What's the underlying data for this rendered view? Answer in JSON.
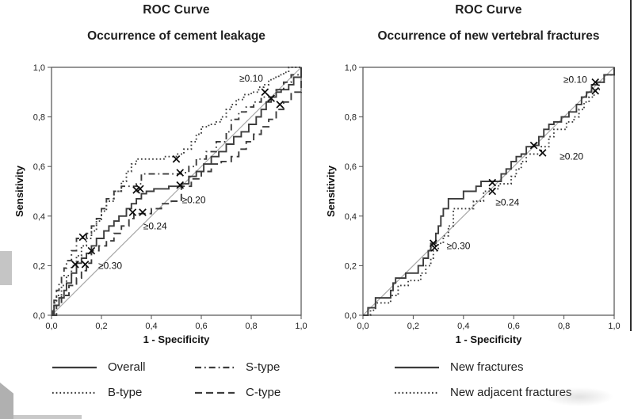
{
  "colors": {
    "curve": "#3c3c3c",
    "reference": "#a8a8a8",
    "frame": "#4f4f4f",
    "marker": "#0a0a0a",
    "text": "#1a1a1a",
    "artifact_gray": "#c5c5c5",
    "artifact_dark_gray": "#b0b0b0",
    "edge_line": "#2e2e2e"
  },
  "chart_data": [
    {
      "type": "line",
      "variant": "ROC",
      "title": "ROC Curve",
      "subtitle": "Occurrence of cement leakage",
      "xlabel": "1 - Specificity",
      "ylabel": "Sensitivity",
      "xlim": [
        0,
        1
      ],
      "ylim": [
        0,
        1
      ],
      "grid": false,
      "x_ticks": [
        "0,0",
        "0,2",
        "0,4",
        "0,6",
        "0,8",
        "1,0"
      ],
      "y_ticks": [
        "0,0",
        "0,2",
        "0,4",
        "0,6",
        "0,8",
        "1,0"
      ],
      "reference_line": {
        "from": [
          0,
          0
        ],
        "to": [
          1,
          1
        ]
      },
      "series": [
        {
          "name": "Overall",
          "line_style": "solid",
          "x": [
            0,
            0.01,
            0.03,
            0.05,
            0.06,
            0.08,
            0.1,
            0.12,
            0.14,
            0.16,
            0.18,
            0.21,
            0.23,
            0.25,
            0.27,
            0.3,
            0.32,
            0.34,
            0.36,
            0.38,
            0.41,
            0.44,
            0.47,
            0.5,
            0.52,
            0.55,
            0.58,
            0.61,
            0.64,
            0.67,
            0.7,
            0.73,
            0.76,
            0.79,
            0.82,
            0.84,
            0.86,
            0.88,
            0.9,
            0.92,
            0.95,
            0.97,
            1
          ],
          "y": [
            0,
            0.04,
            0.07,
            0.1,
            0.13,
            0.17,
            0.21,
            0.23,
            0.25,
            0.28,
            0.31,
            0.34,
            0.36,
            0.38,
            0.4,
            0.43,
            0.45,
            0.47,
            0.49,
            0.5,
            0.51,
            0.51,
            0.52,
            0.52,
            0.53,
            0.56,
            0.58,
            0.61,
            0.64,
            0.66,
            0.69,
            0.72,
            0.74,
            0.77,
            0.8,
            0.83,
            0.86,
            0.88,
            0.9,
            0.91,
            0.93,
            0.96,
            1
          ]
        },
        {
          "name": "B-type",
          "line_style": "dotted",
          "x": [
            0,
            0.01,
            0.02,
            0.04,
            0.06,
            0.08,
            0.1,
            0.12,
            0.14,
            0.16,
            0.18,
            0.2,
            0.22,
            0.25,
            0.28,
            0.3,
            0.32,
            0.34,
            0.4,
            0.45,
            0.5,
            0.53,
            0.56,
            0.58,
            0.6,
            0.63,
            0.66,
            0.68,
            0.7,
            0.72,
            0.74,
            0.77,
            0.8,
            0.83,
            0.85,
            0.87,
            0.89,
            0.91,
            0.93,
            0.95,
            1
          ],
          "y": [
            0,
            0.05,
            0.08,
            0.12,
            0.16,
            0.2,
            0.24,
            0.28,
            0.31,
            0.34,
            0.38,
            0.42,
            0.46,
            0.5,
            0.54,
            0.58,
            0.61,
            0.63,
            0.63,
            0.64,
            0.65,
            0.67,
            0.7,
            0.73,
            0.76,
            0.77,
            0.78,
            0.8,
            0.83,
            0.85,
            0.87,
            0.89,
            0.9,
            0.92,
            0.93,
            0.95,
            0.96,
            0.97,
            0.98,
            1,
            1
          ]
        },
        {
          "name": "S-type",
          "line_style": "dash-dot",
          "x": [
            0,
            0.005,
            0.01,
            0.02,
            0.03,
            0.04,
            0.05,
            0.06,
            0.08,
            0.1,
            0.12,
            0.14,
            0.16,
            0.18,
            0.2,
            0.22,
            0.25,
            0.28,
            0.31,
            0.34,
            0.36,
            0.4,
            0.44,
            0.48,
            0.52,
            0.55,
            0.58,
            0.62,
            0.66,
            0.7,
            0.72,
            0.75,
            0.78,
            0.81,
            0.84,
            0.87,
            0.9,
            0.93,
            0.96,
            1
          ],
          "y": [
            0,
            0.03,
            0.06,
            0.1,
            0.13,
            0.16,
            0.19,
            0.22,
            0.26,
            0.31,
            0.31,
            0.33,
            0.36,
            0.39,
            0.43,
            0.47,
            0.5,
            0.52,
            0.52,
            0.53,
            0.57,
            0.57,
            0.57,
            0.57,
            0.575,
            0.6,
            0.63,
            0.66,
            0.7,
            0.74,
            0.79,
            0.82,
            0.84,
            0.86,
            0.88,
            0.88,
            0.91,
            0.94,
            0.97,
            1
          ]
        },
        {
          "name": "C-type",
          "line_style": "dashed",
          "x": [
            0,
            0.02,
            0.04,
            0.07,
            0.1,
            0.12,
            0.14,
            0.16,
            0.19,
            0.22,
            0.25,
            0.28,
            0.31,
            0.33,
            0.36,
            0.4,
            0.44,
            0.48,
            0.52,
            0.56,
            0.6,
            0.64,
            0.68,
            0.72,
            0.75,
            0.78,
            0.81,
            0.84,
            0.87,
            0.9,
            0.93,
            0.96,
            1
          ],
          "y": [
            0,
            0.04,
            0.08,
            0.12,
            0.15,
            0.18,
            0.21,
            0.26,
            0.28,
            0.3,
            0.33,
            0.36,
            0.39,
            0.41,
            0.41,
            0.43,
            0.45,
            0.46,
            0.52,
            0.55,
            0.58,
            0.61,
            0.62,
            0.64,
            0.67,
            0.7,
            0.73,
            0.76,
            0.79,
            0.83,
            0.86,
            0.9,
            1
          ]
        }
      ],
      "cutoffs": [
        {
          "label": "≥0.10",
          "label_pos": [
            0.8,
            0.955
          ],
          "markers": [
            [
              0.855,
              0.9
            ],
            [
              0.88,
              0.875
            ],
            [
              0.915,
              0.85
            ]
          ]
        },
        {
          "label": "≥0.20",
          "label_pos": [
            0.57,
            0.465
          ],
          "markers": [
            [
              0.5,
              0.63
            ],
            [
              0.515,
              0.575
            ],
            [
              0.515,
              0.525
            ]
          ]
        },
        {
          "label": "≥0.24",
          "label_pos": [
            0.415,
            0.36
          ],
          "markers": [
            [
              0.325,
              0.415
            ],
            [
              0.365,
              0.415
            ],
            [
              0.34,
              0.505
            ],
            [
              0.355,
              0.51
            ]
          ]
        },
        {
          "label": "≥0.30",
          "label_pos": [
            0.235,
            0.2
          ],
          "markers": [
            [
              0.095,
              0.205
            ],
            [
              0.135,
              0.205
            ],
            [
              0.125,
              0.315
            ],
            [
              0.16,
              0.26
            ]
          ]
        }
      ],
      "legend_position": "below"
    },
    {
      "type": "line",
      "variant": "ROC",
      "title": "ROC Curve",
      "subtitle": "Occurrence of new vertebral fractures",
      "xlabel": "1 - Specificity",
      "ylabel": "Sensitivity",
      "xlim": [
        0,
        1
      ],
      "ylim": [
        0,
        1
      ],
      "grid": false,
      "x_ticks": [
        "0,0",
        "0,2",
        "0,4",
        "0,6",
        "0,8",
        "1,0"
      ],
      "y_ticks": [
        "0,0",
        "0,2",
        "0,4",
        "0,6",
        "0,8",
        "1,0"
      ],
      "reference_line": {
        "from": [
          0,
          0
        ],
        "to": [
          1,
          1
        ]
      },
      "series": [
        {
          "name": "New fractures",
          "line_style": "solid",
          "x": [
            0,
            0.02,
            0.05,
            0.08,
            0.11,
            0.12,
            0.13,
            0.15,
            0.17,
            0.2,
            0.22,
            0.24,
            0.26,
            0.27,
            0.28,
            0.29,
            0.3,
            0.31,
            0.32,
            0.34,
            0.36,
            0.38,
            0.4,
            0.42,
            0.45,
            0.47,
            0.5,
            0.53,
            0.55,
            0.57,
            0.59,
            0.61,
            0.63,
            0.65,
            0.68,
            0.7,
            0.72,
            0.74,
            0.76,
            0.79,
            0.82,
            0.85,
            0.87,
            0.89,
            0.91,
            0.93,
            0.96,
            1
          ],
          "y": [
            0,
            0.03,
            0.07,
            0.07,
            0.1,
            0.13,
            0.15,
            0.15,
            0.17,
            0.17,
            0.2,
            0.23,
            0.26,
            0.29,
            0.29,
            0.33,
            0.36,
            0.4,
            0.43,
            0.47,
            0.47,
            0.47,
            0.5,
            0.5,
            0.52,
            0.54,
            0.54,
            0.54,
            0.57,
            0.59,
            0.62,
            0.64,
            0.65,
            0.68,
            0.685,
            0.72,
            0.75,
            0.77,
            0.78,
            0.8,
            0.82,
            0.85,
            0.88,
            0.9,
            0.93,
            0.94,
            0.97,
            1
          ]
        },
        {
          "name": "New adjacent fractures",
          "line_style": "dotted",
          "x": [
            0,
            0.03,
            0.05,
            0.08,
            0.11,
            0.14,
            0.16,
            0.18,
            0.21,
            0.23,
            0.25,
            0.27,
            0.28,
            0.3,
            0.32,
            0.34,
            0.36,
            0.38,
            0.41,
            0.44,
            0.46,
            0.48,
            0.51,
            0.54,
            0.57,
            0.59,
            0.61,
            0.63,
            0.65,
            0.68,
            0.71,
            0.74,
            0.76,
            0.79,
            0.81,
            0.84,
            0.86,
            0.88,
            0.9,
            0.92,
            0.94,
            0.96,
            1
          ],
          "y": [
            0,
            0.02,
            0.05,
            0.05,
            0.08,
            0.12,
            0.12,
            0.14,
            0.14,
            0.17,
            0.2,
            0.23,
            0.26,
            0.29,
            0.32,
            0.36,
            0.43,
            0.43,
            0.43,
            0.46,
            0.46,
            0.5,
            0.51,
            0.53,
            0.53,
            0.56,
            0.59,
            0.62,
            0.65,
            0.65,
            0.68,
            0.72,
            0.75,
            0.75,
            0.78,
            0.8,
            0.83,
            0.86,
            0.88,
            0.91,
            0.94,
            0.97,
            1
          ]
        }
      ],
      "cutoffs": [
        {
          "label": "≥0.10",
          "label_pos": [
            0.845,
            0.95
          ],
          "markers": [
            [
              0.925,
              0.94
            ],
            [
              0.925,
              0.905
            ]
          ]
        },
        {
          "label": "≥0.20",
          "label_pos": [
            0.83,
            0.64
          ],
          "markers": [
            [
              0.68,
              0.685
            ],
            [
              0.715,
              0.655
            ]
          ]
        },
        {
          "label": "≥0.24",
          "label_pos": [
            0.575,
            0.455
          ],
          "markers": [
            [
              0.515,
              0.535
            ],
            [
              0.515,
              0.5
            ]
          ]
        },
        {
          "label": "≥0.30",
          "label_pos": [
            0.38,
            0.28
          ],
          "markers": [
            [
              0.28,
              0.29
            ],
            [
              0.285,
              0.272
            ]
          ]
        }
      ],
      "legend_position": "below"
    }
  ]
}
